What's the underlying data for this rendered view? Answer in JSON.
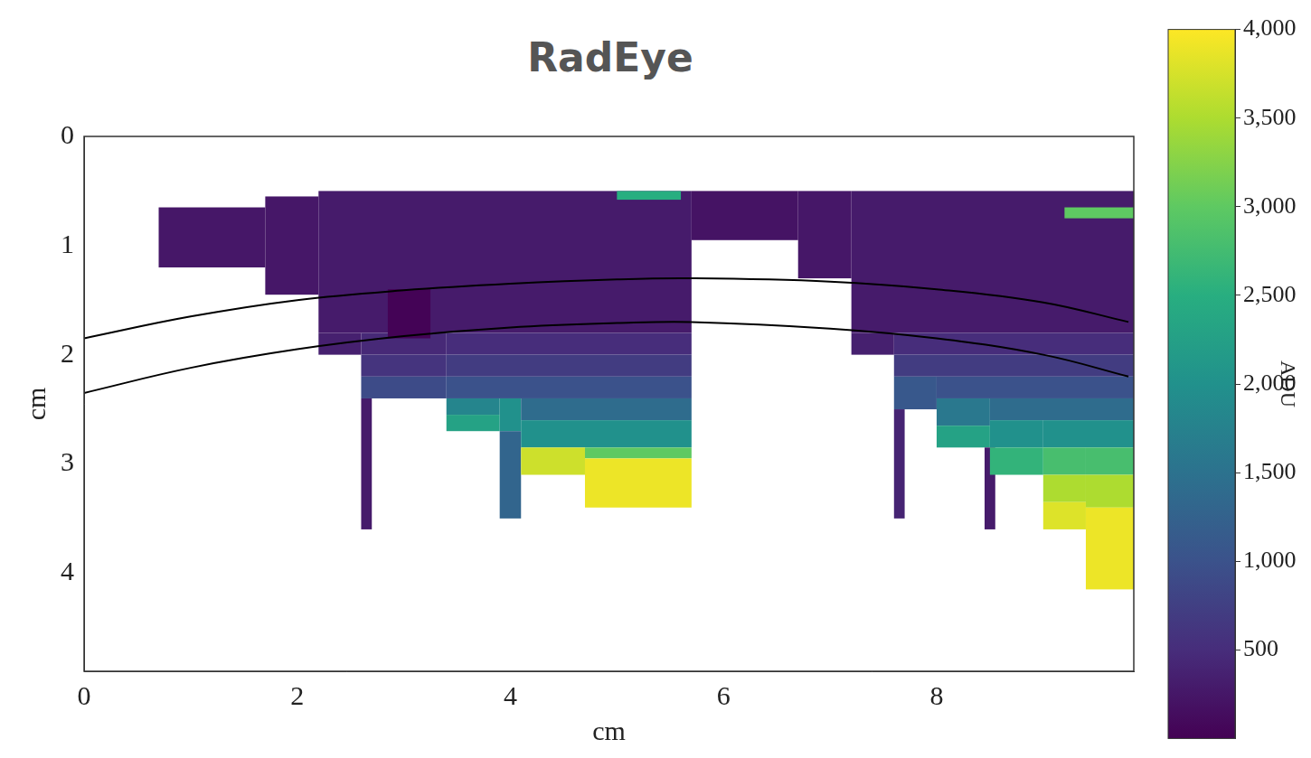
{
  "chart_data": {
    "type": "heatmap",
    "title": "RadEye",
    "x_label": "cm",
    "y_label": "cm",
    "xlim": [
      0,
      9.85
    ],
    "ylim": [
      4.9,
      0
    ],
    "xticks": [
      0,
      2,
      4,
      6,
      8
    ],
    "yticks": [
      0,
      1,
      2,
      3,
      4
    ],
    "grid": false,
    "colorbar": {
      "label": "ADU",
      "range": [
        0,
        4000
      ],
      "ticks": [
        500,
        1000,
        1500,
        2000,
        2500,
        3000,
        3500,
        4000
      ]
    },
    "cells": [
      [
        0.7,
        1.7,
        0.65,
        1.2,
        250
      ],
      [
        1.7,
        2.2,
        0.55,
        1.45,
        250
      ],
      [
        2.2,
        5.7,
        0.5,
        1.8,
        300
      ],
      [
        5.7,
        6.7,
        0.5,
        0.95,
        200
      ],
      [
        6.7,
        7.2,
        0.5,
        1.3,
        250
      ],
      [
        7.2,
        9.85,
        0.5,
        1.8,
        300
      ],
      [
        5.0,
        5.6,
        0.5,
        0.58,
        2500
      ],
      [
        9.2,
        9.85,
        0.65,
        0.75,
        3000
      ],
      [
        2.2,
        2.6,
        1.8,
        2.0,
        350
      ],
      [
        2.6,
        3.4,
        1.8,
        2.0,
        450
      ],
      [
        2.6,
        3.4,
        2.0,
        2.2,
        600
      ],
      [
        2.6,
        3.4,
        2.2,
        2.4,
        900
      ],
      [
        2.6,
        2.7,
        2.4,
        3.6,
        300
      ],
      [
        3.4,
        5.7,
        1.8,
        2.0,
        500
      ],
      [
        3.4,
        5.7,
        2.0,
        2.2,
        700
      ],
      [
        3.4,
        5.7,
        2.2,
        2.4,
        1000
      ],
      [
        3.4,
        3.9,
        2.4,
        2.55,
        1800
      ],
      [
        3.4,
        3.9,
        2.55,
        2.7,
        2300
      ],
      [
        3.9,
        4.1,
        2.4,
        2.7,
        2000
      ],
      [
        3.9,
        4.1,
        2.7,
        3.5,
        1300
      ],
      [
        4.1,
        5.7,
        2.4,
        2.6,
        1400
      ],
      [
        4.1,
        5.7,
        2.6,
        2.85,
        2000
      ],
      [
        4.1,
        4.7,
        2.85,
        3.1,
        3700
      ],
      [
        4.7,
        5.7,
        2.85,
        2.95,
        3000
      ],
      [
        4.7,
        5.7,
        2.95,
        3.4,
        3900
      ],
      [
        2.85,
        3.25,
        1.4,
        1.85,
        20
      ],
      [
        7.2,
        7.6,
        1.8,
        2.0,
        350
      ],
      [
        7.6,
        9.85,
        1.8,
        2.0,
        500
      ],
      [
        7.6,
        9.85,
        2.0,
        2.2,
        700
      ],
      [
        7.6,
        8.0,
        2.2,
        2.5,
        1100
      ],
      [
        7.6,
        7.7,
        2.5,
        3.5,
        400
      ],
      [
        8.0,
        9.85,
        2.2,
        2.4,
        1000
      ],
      [
        8.0,
        8.5,
        2.4,
        2.65,
        1600
      ],
      [
        8.0,
        8.5,
        2.65,
        2.85,
        2300
      ],
      [
        8.45,
        8.55,
        2.85,
        3.6,
        300
      ],
      [
        8.5,
        9.85,
        2.4,
        2.6,
        1400
      ],
      [
        8.5,
        9.0,
        2.6,
        2.85,
        2000
      ],
      [
        8.5,
        9.0,
        2.85,
        3.1,
        2600
      ],
      [
        9.0,
        9.85,
        2.6,
        2.85,
        2000
      ],
      [
        9.0,
        9.4,
        2.85,
        3.1,
        2800
      ],
      [
        9.0,
        9.4,
        3.1,
        3.35,
        3500
      ],
      [
        9.0,
        9.4,
        3.35,
        3.6,
        3800
      ],
      [
        9.4,
        9.85,
        2.85,
        3.1,
        2800
      ],
      [
        9.4,
        9.85,
        3.1,
        3.4,
        3500
      ],
      [
        9.4,
        9.85,
        3.4,
        4.15,
        3900
      ]
    ],
    "curves": [
      {
        "x": [
          0,
          1,
          2,
          3,
          4,
          5,
          5.7,
          7,
          8,
          9,
          9.8
        ],
        "y": [
          1.85,
          1.65,
          1.5,
          1.41,
          1.35,
          1.31,
          1.3,
          1.33,
          1.4,
          1.52,
          1.7
        ],
        "color": "#000000"
      },
      {
        "x": [
          0,
          1,
          2,
          3,
          4,
          5,
          5.7,
          7,
          8,
          9,
          9.8
        ],
        "y": [
          2.35,
          2.12,
          1.95,
          1.83,
          1.75,
          1.71,
          1.7,
          1.76,
          1.85,
          2.0,
          2.2
        ],
        "color": "#000000"
      }
    ]
  }
}
